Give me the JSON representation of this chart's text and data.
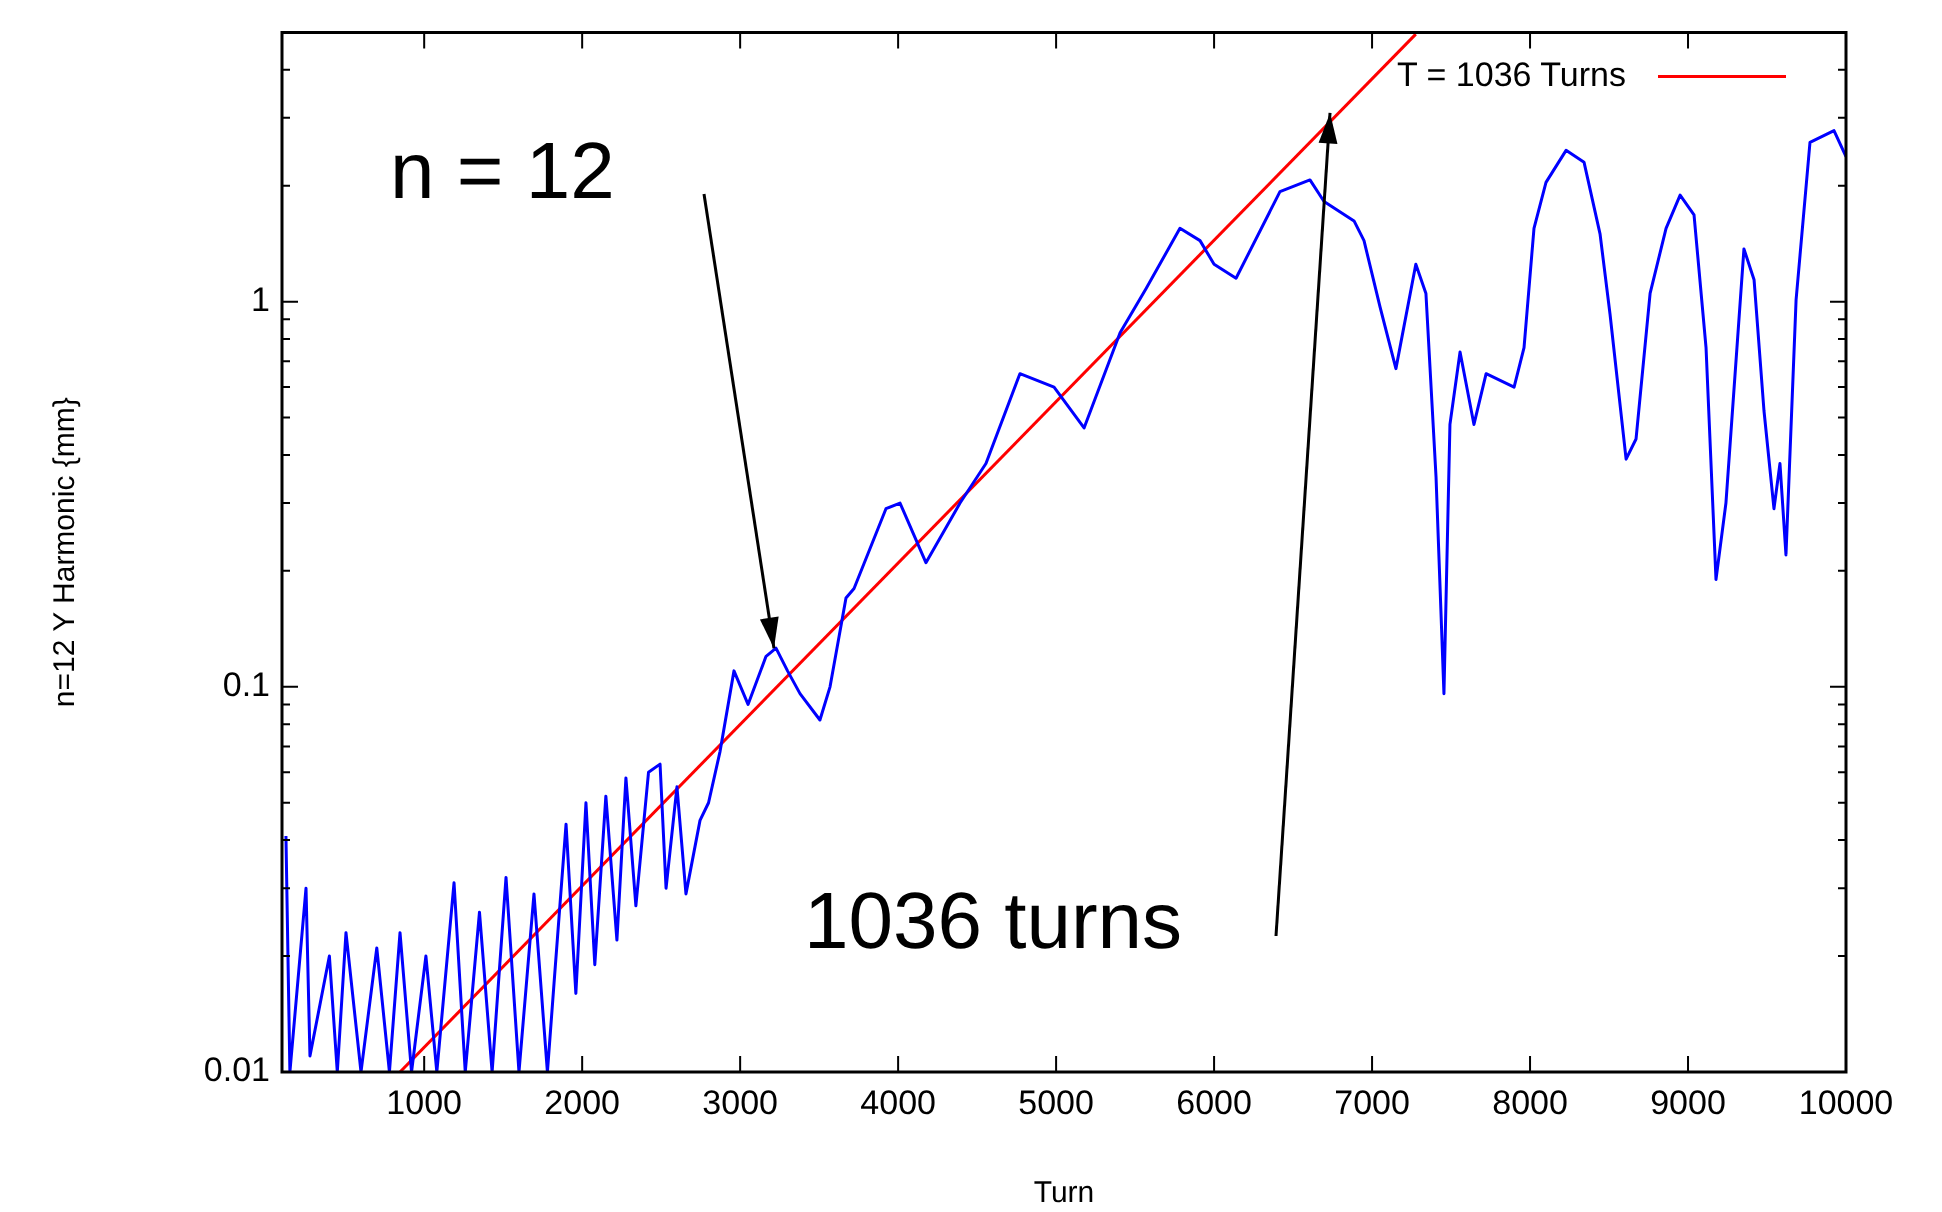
{
  "chart_data": {
    "type": "line",
    "xlabel": "Turn",
    "ylabel": "n=12 Y Harmonic {mm}",
    "log": "y",
    "legend": "top right",
    "marker": "none",
    "xlim": [
      100,
      10000
    ],
    "xticks": [
      1000,
      2000,
      3000,
      4000,
      5000,
      6000,
      7000,
      8000,
      9000,
      10000
    ],
    "ylim": [
      0.01,
      5
    ],
    "yticks": [
      0.01,
      {
        "value": 0.02,
        "label": null
      },
      {
        "value": 0.03,
        "label": null
      },
      {
        "value": 0.04,
        "label": null
      },
      {
        "value": 0.05,
        "label": null
      },
      {
        "value": 0.06,
        "label": null
      },
      {
        "value": 0.07,
        "label": null
      },
      {
        "value": 0.08,
        "label": null
      },
      {
        "value": 0.09,
        "label": null
      },
      0.1,
      {
        "value": 0.2,
        "label": null
      },
      {
        "value": 0.3,
        "label": null
      },
      {
        "value": 0.4,
        "label": null
      },
      {
        "value": 0.5,
        "label": null
      },
      {
        "value": 0.6,
        "label": null
      },
      {
        "value": 0.7,
        "label": null
      },
      {
        "value": 0.8,
        "label": null
      },
      {
        "value": 0.9,
        "label": null
      },
      1,
      {
        "value": 2,
        "label": null
      },
      {
        "value": 3,
        "label": null
      },
      {
        "value": 4,
        "label": null
      },
      {
        "value": 5,
        "label": null
      }
    ],
    "series": [
      {
        "color": "#0000ff",
        "x": [
          125,
          150,
          252,
          277,
          400,
          450,
          505,
          600,
          700,
          780,
          847,
          920,
          1011,
          1080,
          1189,
          1260,
          1350,
          1430,
          1518,
          1600,
          1695,
          1780,
          1822,
          1898,
          1960,
          2024,
          2080,
          2150,
          2220,
          2277,
          2340,
          2420,
          2493,
          2531,
          2600,
          2657,
          2746,
          2800,
          2873,
          2961,
          3050,
          3164,
          3227,
          3300,
          3379,
          3505,
          3569,
          3670,
          3721,
          3923,
          4012,
          4176,
          4392,
          4556,
          4771,
          4987,
          5177,
          5405,
          5569,
          5784,
          5911,
          6000,
          6139,
          6417,
          6607,
          6696,
          6886,
          6949,
          7050,
          7151,
          7277,
          7341,
          7405,
          7455,
          7493,
          7557,
          7645,
          7722,
          7899,
          7962,
          8025,
          8101,
          8228,
          8342,
          8443,
          8506,
          8608,
          8671,
          8760,
          8861,
          8950,
          9038,
          9114,
          9177,
          9240,
          9354,
          9418,
          9481,
          9544,
          9582,
          9620,
          9684,
          9772,
          9924,
          10000
        ],
        "values": [
          0.041,
          0.01,
          0.03,
          0.011,
          0.02,
          0.01,
          0.023,
          0.01,
          0.021,
          0.01,
          0.023,
          0.01,
          0.02,
          0.01,
          0.031,
          0.01,
          0.026,
          0.01,
          0.032,
          0.01,
          0.029,
          0.01,
          0.017,
          0.044,
          0.016,
          0.05,
          0.019,
          0.052,
          0.022,
          0.058,
          0.027,
          0.06,
          0.063,
          0.03,
          0.055,
          0.029,
          0.045,
          0.05,
          0.068,
          0.11,
          0.09,
          0.12,
          0.126,
          0.11,
          0.096,
          0.082,
          0.1,
          0.17,
          0.18,
          0.29,
          0.3,
          0.21,
          0.3,
          0.38,
          0.65,
          0.6,
          0.47,
          0.83,
          1.08,
          1.55,
          1.44,
          1.25,
          1.15,
          1.93,
          2.07,
          1.82,
          1.62,
          1.44,
          0.97,
          0.67,
          1.25,
          1.05,
          0.35,
          0.096,
          0.48,
          0.74,
          0.48,
          0.65,
          0.6,
          0.76,
          1.55,
          2.04,
          2.47,
          2.3,
          1.5,
          0.93,
          0.39,
          0.44,
          1.05,
          1.55,
          1.89,
          1.68,
          0.76,
          0.19,
          0.3,
          1.37,
          1.14,
          0.52,
          0.29,
          0.38,
          0.22,
          1.01,
          2.59,
          2.78,
          2.38
        ]
      },
      {
        "name": "T = 1036 Turns",
        "color": "#ff0000",
        "x": [
          847,
          7277
        ],
        "values": [
          0.01,
          4.95
        ]
      }
    ],
    "annotations": [
      {
        "text": "n = 12",
        "x": 3214,
        "y": 0.126
      },
      {
        "text": "1036 turns",
        "x": 6734,
        "y": 3.09
      }
    ]
  }
}
